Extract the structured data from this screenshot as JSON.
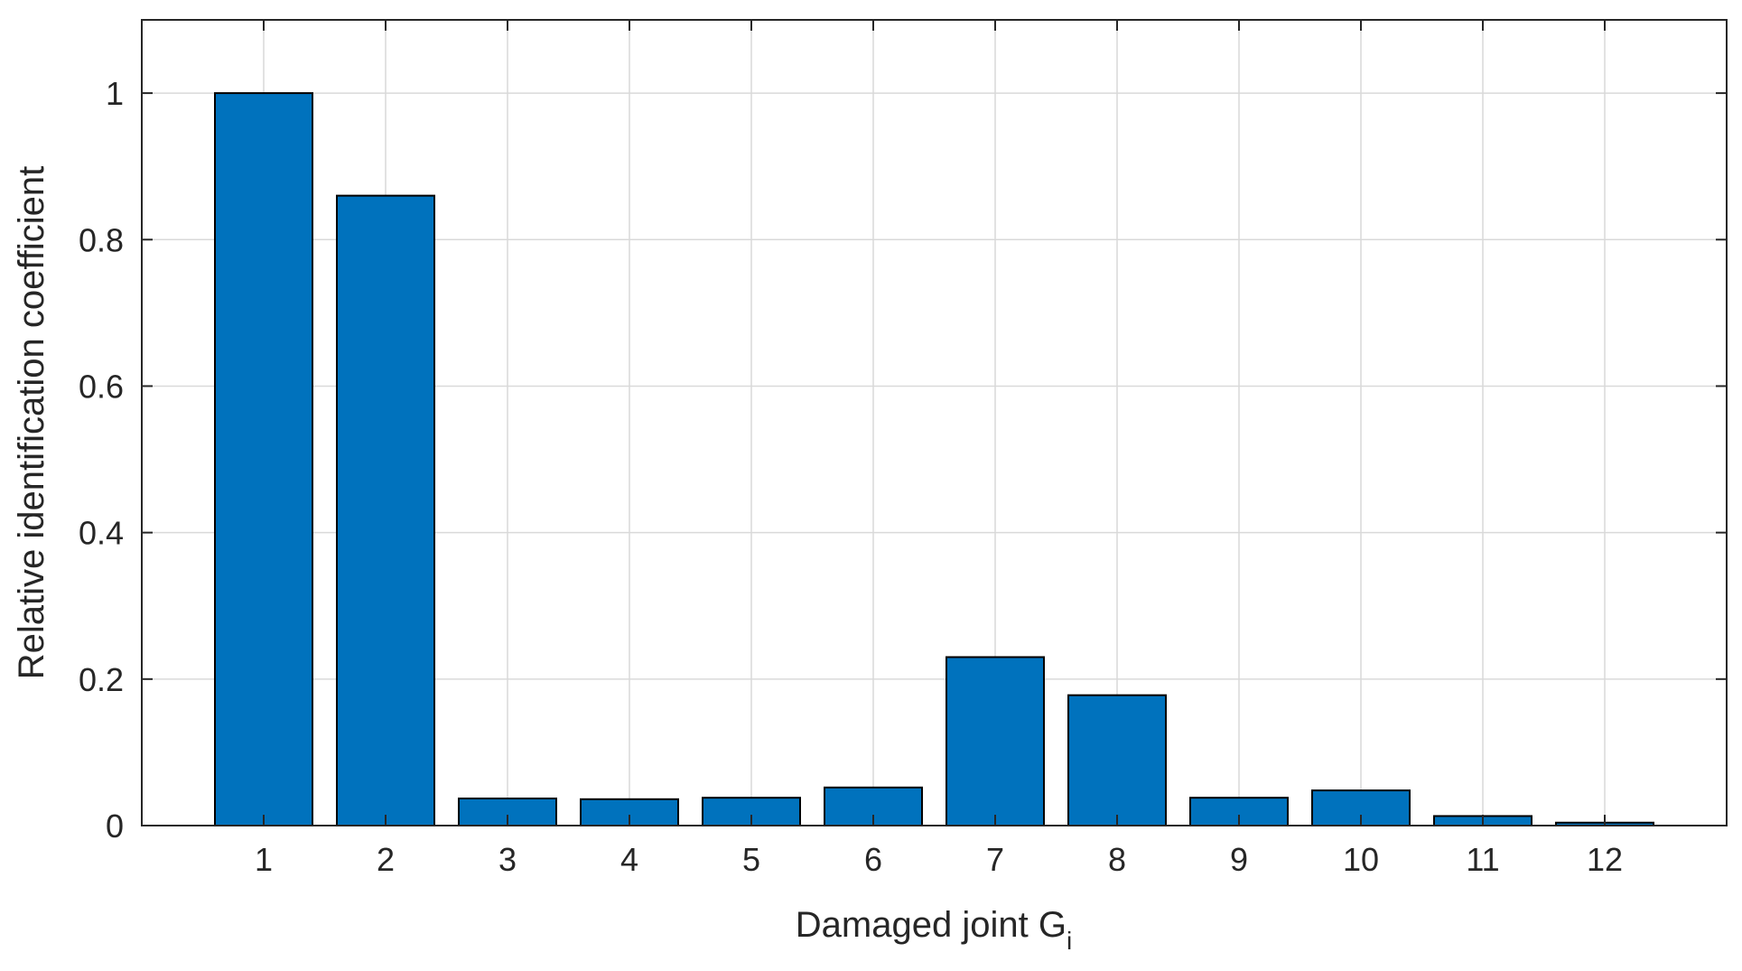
{
  "chart_data": {
    "type": "bar",
    "categories": [
      "1",
      "2",
      "3",
      "4",
      "5",
      "6",
      "7",
      "8",
      "9",
      "10",
      "11",
      "12"
    ],
    "values": [
      1.0,
      0.86,
      0.037,
      0.036,
      0.038,
      0.052,
      0.23,
      0.178,
      0.038,
      0.048,
      0.013,
      0.004
    ],
    "title": "",
    "xlabel": "Damaged joint G",
    "xlabel_subscript": "i",
    "ylabel": "Relative identification coefficient",
    "xlim": [
      0,
      13
    ],
    "ylim": [
      0,
      1.1
    ],
    "yticks": [
      0,
      0.2,
      0.4,
      0.6,
      0.8,
      1
    ],
    "ytick_labels": [
      "0",
      "0.2",
      "0.4",
      "0.6",
      "0.8",
      "1"
    ],
    "grid": true,
    "bar_color": "#0072bd",
    "bar_edge_color": "#000000",
    "grid_color": "#d9d9d9",
    "axis_color": "#262626"
  }
}
